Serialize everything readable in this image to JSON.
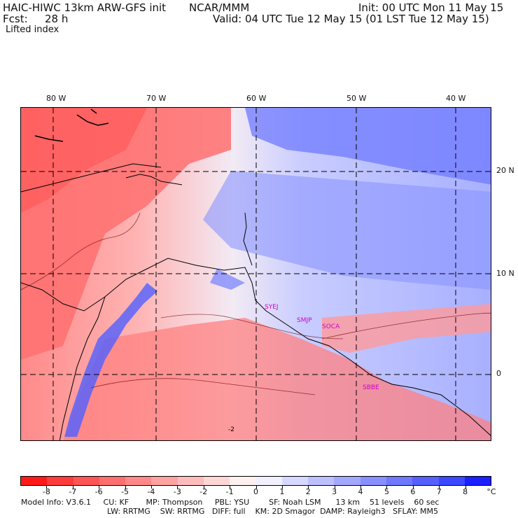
{
  "header": {
    "model": "HAIC-HIWC 13km ARW-GFS init",
    "org": "NCAR/MMM",
    "init": "Init: 00 UTC Mon 11 May 15",
    "fcst_label": "Fcst:",
    "fcst_value": "28 h",
    "valid": "Valid: 04 UTC Tue 12 May 15 (01 LST Tue 12 May 15)",
    "field": "Lifted index"
  },
  "map": {
    "lon_labels": [
      "80 W",
      "70 W",
      "60 W",
      "50 W",
      "40 W"
    ],
    "lat_labels": [
      "20 N",
      "10 N",
      "0"
    ],
    "stations": [
      "SYEJ",
      "SMJP",
      "SOCA",
      "SBBE"
    ],
    "contour_label": "-2"
  },
  "colorbar": {
    "labels": [
      "-8",
      "-7",
      "-6",
      "-5",
      "-4",
      "-3",
      "-2",
      "-1",
      "0",
      "1",
      "2",
      "3",
      "4",
      "5",
      "6",
      "7",
      "8"
    ],
    "unit": "°C",
    "colors": [
      "#ff1a1a",
      "#ff3b3b",
      "#ff5555",
      "#ff6f6f",
      "#ff8888",
      "#ffa2a2",
      "#ffbcbc",
      "#ffd6d6",
      "#fff0f0",
      "#f0f0ff",
      "#d6d8ff",
      "#bcc0ff",
      "#a2a8ff",
      "#8890ff",
      "#6f78ff",
      "#5560ff",
      "#3b48ff",
      "#1a20ff"
    ]
  },
  "footer": {
    "line1": "Model Info: V3.6.1     CU: KF       MP: Thompson     PBL: YSU        SF: Noah LSM      13 km    51 levels    60 sec",
    "line2": "LW: RRTMG    SW: RRTMG   DIFF: full    KM: 2D Smagor  DAMP: Rayleigh3   SFLAY: MM5"
  }
}
